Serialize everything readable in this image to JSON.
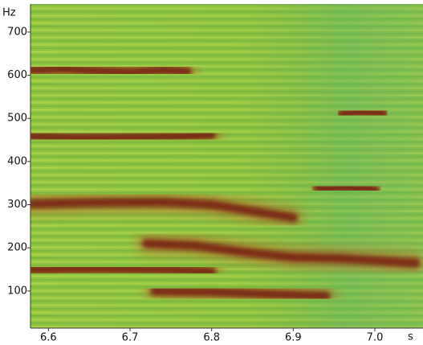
{
  "chart_data": {
    "type": "spectrogram",
    "xlabel": "s",
    "ylabel": "Hz",
    "xlim": [
      6.578,
      7.059
    ],
    "xticks": [
      6.6,
      6.7,
      6.8,
      6.9,
      {
        "value": 7,
        "label": "7.0"
      }
    ],
    "ylim": [
      14,
      765
    ],
    "yticks": [
      100,
      200,
      300,
      400,
      500,
      600,
      700
    ],
    "background_color": "#8cc43f",
    "color": "#7a2a12",
    "series": [
      {
        "x": [
          6.58,
          6.62,
          6.66,
          6.7,
          6.74,
          6.77
        ],
        "values": [
          612,
          615,
          610,
          607,
          612,
          608
        ]
      },
      {
        "x": [
          6.58,
          6.64,
          6.7,
          6.76,
          6.8
        ],
        "values": [
          458,
          455,
          456,
          458,
          462
        ]
      },
      {
        "x": [
          6.58,
          6.66,
          6.74,
          6.8,
          6.85,
          6.9
        ],
        "values": [
          302,
          305,
          306,
          300,
          285,
          270
        ]
      },
      {
        "x": [
          6.58,
          6.66,
          6.74,
          6.8
        ],
        "values": [
          150,
          152,
          150,
          145
        ]
      },
      {
        "x": [
          6.72,
          6.78,
          6.84,
          6.9,
          6.96,
          7.05
        ],
        "values": [
          210,
          205,
          190,
          178,
          175,
          165
        ]
      },
      {
        "x": [
          6.73,
          6.8,
          6.88,
          6.94
        ],
        "values": [
          100,
          98,
          92,
          88
        ]
      },
      {
        "x": [
          6.93,
          6.97,
          7.0
        ],
        "values": [
          338,
          340,
          335
        ]
      },
      {
        "x": [
          6.96,
          6.98,
          7.01
        ],
        "values": [
          510,
          515,
          512
        ]
      }
    ]
  }
}
